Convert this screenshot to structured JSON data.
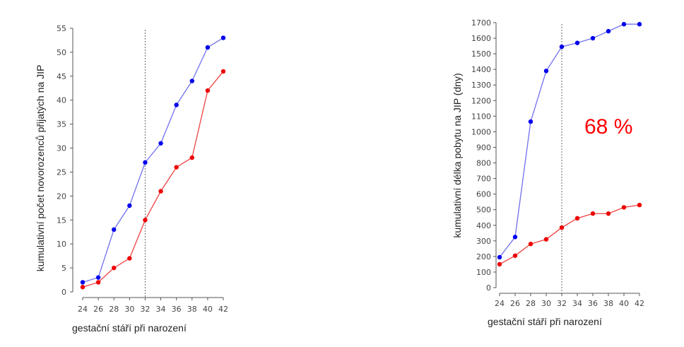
{
  "colors": {
    "blue": "#0000ee",
    "blue_line": "#7070ee",
    "red": "#ee0000",
    "red_line": "#f04040",
    "axis": "#555555",
    "ref_line": "#666666"
  },
  "chart_data": [
    {
      "type": "line",
      "xlabel": "gestační stáří při narození",
      "ylabel": "kumulativní počet novorozenců přijatých na JIP",
      "x": [
        24,
        26,
        28,
        30,
        32,
        34,
        36,
        38,
        40,
        42
      ],
      "x_ticks": [
        "24",
        "26",
        "28",
        "30",
        "32",
        "34",
        "36",
        "38",
        "40",
        "42"
      ],
      "y_ticks": [
        "0",
        "5",
        "10",
        "15",
        "20",
        "25",
        "30",
        "35",
        "40",
        "45",
        "50",
        "55"
      ],
      "ylim": [
        0,
        55
      ],
      "xlim": [
        24,
        42
      ],
      "reference_line_x": 32,
      "series": [
        {
          "color": "blue",
          "values": [
            2,
            3,
            13,
            18,
            27,
            31,
            39,
            44,
            51,
            53
          ]
        },
        {
          "color": "red",
          "values": [
            1,
            2,
            5,
            7,
            15,
            21,
            26,
            28,
            42,
            46
          ]
        }
      ],
      "annotation": ""
    },
    {
      "type": "line",
      "xlabel": "gestační stáří při narození",
      "ylabel": "kumulativní délka pobytu na JIP (dny)",
      "x": [
        24,
        26,
        28,
        30,
        32,
        34,
        36,
        38,
        40,
        42
      ],
      "x_ticks": [
        "24",
        "26",
        "28",
        "30",
        "32",
        "34",
        "36",
        "38",
        "40",
        "42"
      ],
      "y_ticks": [
        "0",
        "100",
        "200",
        "300",
        "400",
        "500",
        "600",
        "700",
        "800",
        "900",
        "1000",
        "1100",
        "1200",
        "1300",
        "1400",
        "1500",
        "1600",
        "1700"
      ],
      "ylim": [
        0,
        1700
      ],
      "xlim": [
        24,
        42
      ],
      "reference_line_x": 32,
      "series": [
        {
          "color": "blue",
          "values": [
            195,
            325,
            1065,
            1390,
            1545,
            1570,
            1600,
            1645,
            1690,
            1690
          ]
        },
        {
          "color": "red",
          "values": [
            150,
            205,
            280,
            310,
            385,
            445,
            475,
            475,
            515,
            530
          ]
        }
      ],
      "annotation": "68 %"
    }
  ]
}
